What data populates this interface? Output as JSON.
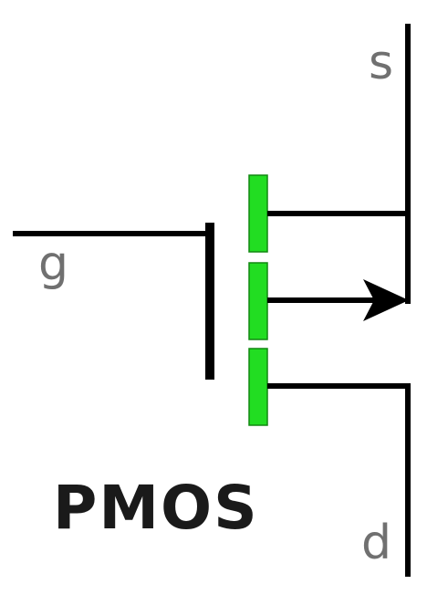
{
  "title": "PMOS",
  "terminals": {
    "source": "s",
    "gate": "g",
    "drain": "d"
  },
  "colors": {
    "wire": "#000000",
    "channel_fill": "#22dd22",
    "channel_stroke": "#118811",
    "terminal_label": "#707070",
    "title": "#1a1a1a"
  }
}
